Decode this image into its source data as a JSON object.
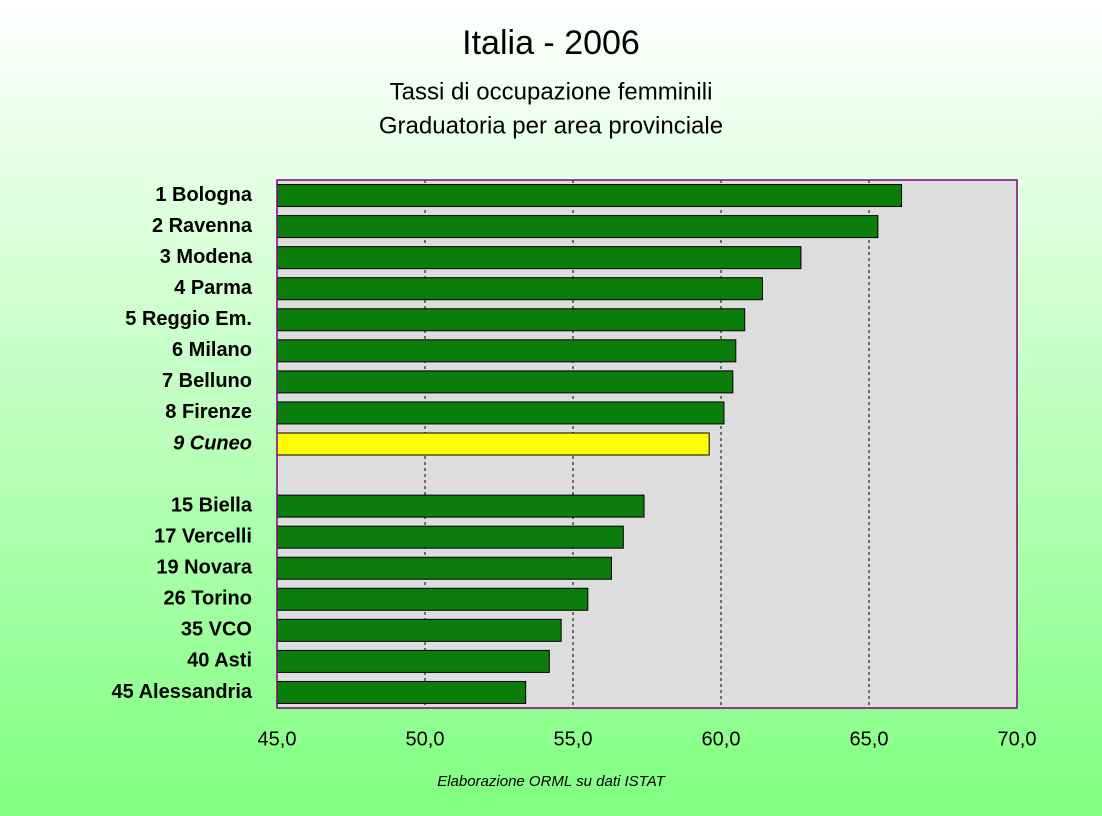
{
  "chart_data": {
    "type": "barh",
    "title": "Italia - 2006",
    "subtitle": [
      "Tassi di occupazione femminili",
      "Graduatoria per area provinciale"
    ],
    "source": "Elaborazione ORML su dati ISTAT",
    "categories": [
      "1 Bologna",
      "2 Ravenna",
      "3 Modena",
      "4 Parma",
      "5 Reggio Em.",
      "6 Milano",
      "7 Belluno",
      "8 Firenze",
      "9 Cuneo",
      null,
      "15 Biella",
      "17 Vercelli",
      "19 Novara",
      "26 Torino",
      "35 VCO",
      "40 Asti",
      "45 Alessandria"
    ],
    "values": [
      66.1,
      65.3,
      62.7,
      61.4,
      60.8,
      60.5,
      60.4,
      60.1,
      59.6,
      null,
      57.4,
      56.7,
      56.3,
      55.5,
      54.6,
      54.2,
      53.4
    ],
    "color": "#0b7d0b",
    "colors": [
      "#0b7d0b",
      "#0b7d0b",
      "#0b7d0b",
      "#0b7d0b",
      "#0b7d0b",
      "#0b7d0b",
      "#0b7d0b",
      "#0b7d0b",
      "#ffff00",
      null,
      "#0b7d0b",
      "#0b7d0b",
      "#0b7d0b",
      "#0b7d0b",
      "#0b7d0b",
      "#0b7d0b",
      "#0b7d0b"
    ],
    "xlim": [
      45,
      70
    ],
    "xticks": [
      {
        "value": 45,
        "label": "45,0"
      },
      {
        "value": 50,
        "label": "50,0"
      },
      {
        "value": 55,
        "label": "55,0"
      },
      {
        "value": 60,
        "label": "60,0"
      },
      {
        "value": 65,
        "label": "65,0"
      },
      {
        "value": 70,
        "label": "70,0"
      }
    ],
    "grid": true
  }
}
